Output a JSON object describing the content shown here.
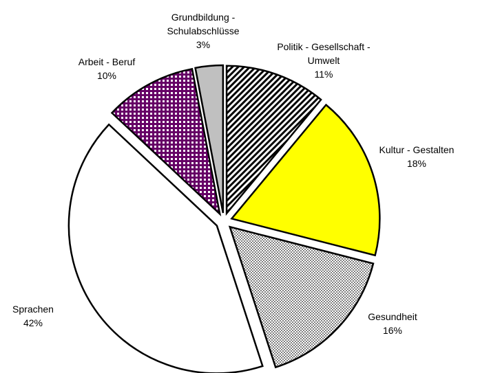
{
  "chart_data": {
    "type": "pie",
    "categories": [
      "Politik - Gesellschaft - Umwelt",
      "Kultur - Gestalten",
      "Gesundheit",
      "Sprachen",
      "Arbeit - Beruf",
      "Grundbildung - Schulabschlüsse"
    ],
    "values": [
      11,
      18,
      16,
      42,
      10,
      3
    ],
    "value_labels": [
      "11%",
      "18%",
      "16%",
      "42%",
      "10%",
      "3%"
    ],
    "colors": [
      "#000000",
      "#ffff00",
      "#808080",
      "#ffffff",
      "#660066",
      "#c0c0c0"
    ],
    "patterns": [
      "diagonal",
      "solid",
      "checker",
      "solid",
      "grid",
      "solid"
    ],
    "exploded": true
  }
}
